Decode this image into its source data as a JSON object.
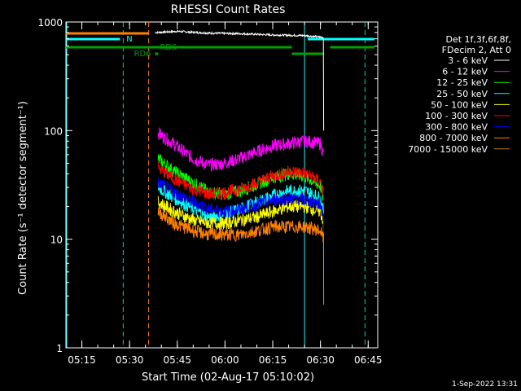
{
  "chart_data": {
    "type": "line",
    "title": "RHESSI Count Rates",
    "xlabel": "Start Time (02-Aug-17 05:10:02)",
    "ylabel": "Count Rate (s⁻¹ detector segment⁻¹)",
    "y_scale": "log",
    "ylim": [
      1,
      1000
    ],
    "xlim": [
      "05:10",
      "06:48"
    ],
    "y_ticks": [
      {
        "value": 1,
        "label": "1"
      },
      {
        "value": 10,
        "label": "10"
      },
      {
        "value": 100,
        "label": "100"
      },
      {
        "value": 1000,
        "label": "1000"
      }
    ],
    "x_ticks": [
      "05:15",
      "05:30",
      "05:45",
      "06:00",
      "06:15",
      "06:30",
      "06:45"
    ],
    "legend_header": [
      "Det 1f,3f,6f,8f,",
      "FDecim 2, Att 0"
    ],
    "legend_position": "right",
    "series": [
      {
        "name": "3 - 6 keV",
        "color": "#000000",
        "x": [
          "05:38",
          "05:45",
          "05:55",
          "06:05",
          "06:15",
          "06:25",
          "06:31"
        ],
        "values": [
          800,
          820,
          790,
          780,
          760,
          750,
          720
        ],
        "drop_to": 100
      },
      {
        "name": "6 - 12 keV",
        "color": "#ff00ff",
        "x": [
          "05:39",
          "05:44",
          "05:50",
          "05:55",
          "06:00",
          "06:05",
          "06:10",
          "06:15",
          "06:20",
          "06:25",
          "06:30",
          "06:31"
        ],
        "values": [
          95,
          75,
          55,
          48,
          50,
          56,
          64,
          72,
          76,
          80,
          76,
          60
        ]
      },
      {
        "name": "12 - 25 keV",
        "color": "#00ff00",
        "x": [
          "05:39",
          "05:44",
          "05:50",
          "05:55",
          "06:00",
          "06:05",
          "06:10",
          "06:15",
          "06:20",
          "06:25",
          "06:30",
          "06:31"
        ],
        "values": [
          55,
          42,
          33,
          27,
          26,
          28,
          32,
          37,
          40,
          38,
          31,
          23
        ]
      },
      {
        "name": "25 - 50 keV",
        "color": "#00ffff",
        "x": [
          "05:39",
          "05:44",
          "05:50",
          "05:55",
          "06:00",
          "06:05",
          "06:10",
          "06:15",
          "06:20",
          "06:25",
          "06:30",
          "06:31"
        ],
        "values": [
          30,
          24,
          19,
          16,
          17,
          19,
          22,
          25,
          28,
          28,
          24,
          18
        ]
      },
      {
        "name": "50 - 100 keV",
        "color": "#ffff00",
        "x": [
          "05:39",
          "05:44",
          "05:50",
          "05:55",
          "06:00",
          "06:05",
          "06:10",
          "06:15",
          "06:20",
          "06:25",
          "06:30",
          "06:31"
        ],
        "values": [
          22,
          18,
          15,
          14,
          14,
          15,
          16,
          18,
          20,
          20,
          18,
          14
        ]
      },
      {
        "name": "100 - 300 keV",
        "color": "#ff0000",
        "x": [
          "05:39",
          "05:44",
          "05:50",
          "05:55",
          "06:00",
          "06:05",
          "06:10",
          "06:15",
          "06:20",
          "06:25",
          "06:30",
          "06:31"
        ],
        "values": [
          45,
          36,
          29,
          26,
          27,
          29,
          33,
          38,
          42,
          41,
          34,
          26
        ]
      },
      {
        "name": "300 - 800 keV",
        "color": "#0000ff",
        "x": [
          "05:39",
          "05:44",
          "05:50",
          "05:55",
          "06:00",
          "06:05",
          "06:10",
          "06:15",
          "06:20",
          "06:25",
          "06:30",
          "06:31"
        ],
        "values": [
          33,
          27,
          22,
          19,
          18,
          19,
          21,
          23,
          24,
          23,
          21,
          17
        ],
        "drop_to": 5
      },
      {
        "name": "800 - 7000 keV",
        "color": "#ff8000",
        "x": [
          "05:39",
          "05:44",
          "05:50",
          "05:55",
          "06:00",
          "06:05",
          "06:10",
          "06:15",
          "06:20",
          "06:25",
          "06:30",
          "06:31"
        ],
        "values": [
          18,
          14,
          12,
          11,
          11,
          11,
          12,
          13,
          13,
          13,
          12,
          10
        ],
        "drop_to": 2.5
      },
      {
        "name": "7000 - 15000 keV",
        "color": "#c08000",
        "x": [],
        "values": []
      }
    ],
    "annotations": [
      {
        "text": "N",
        "color": "#00ffff"
      },
      {
        "text": "RD6",
        "color": "#00a000"
      },
      {
        "text": "RD6",
        "color": "#00a000"
      }
    ],
    "vertical_lines": [
      {
        "x": "05:28",
        "color": "#00cccc",
        "style": "dashed"
      },
      {
        "x": "05:36",
        "color": "#ff8000",
        "style": "dashed"
      },
      {
        "x": "06:25",
        "color": "#00ffff",
        "style": "solid"
      },
      {
        "x": "06:44",
        "color": "#00cccc",
        "style": "dashed"
      }
    ]
  },
  "footer": {
    "date": "1-Sep-2022 13:31"
  }
}
